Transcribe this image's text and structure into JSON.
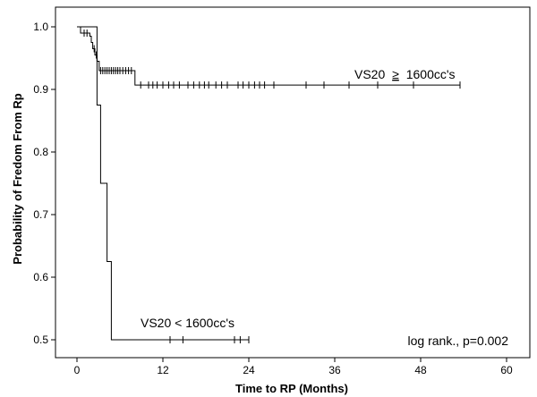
{
  "chart_data": {
    "type": "line",
    "subtype": "kaplan-meier",
    "title": "",
    "xlabel": "Time to RP (Months)",
    "ylabel": "Probability of Fredom From Rp",
    "xlim": [
      0,
      60
    ],
    "ylim": [
      0.5,
      1.0
    ],
    "xticks": [
      0,
      12,
      24,
      36,
      48,
      60
    ],
    "yticks": [
      0.5,
      0.6,
      0.7,
      0.8,
      0.9,
      1.0
    ],
    "ytick_labels": [
      "0.5",
      "0.6",
      "0.7",
      "0.8",
      "0.9",
      "1.0"
    ],
    "grid": false,
    "legend": "none",
    "series": [
      {
        "name": "VS20 ≥ 1600cc's",
        "label_prefix": "VS20",
        "label_symbol": "≥",
        "label_suffix": "1600cc's",
        "step_points": [
          [
            0,
            1.0
          ],
          [
            0.5,
            0.99
          ],
          [
            1.8,
            0.985
          ],
          [
            2.0,
            0.975
          ],
          [
            2.2,
            0.965
          ],
          [
            2.5,
            0.955
          ],
          [
            2.8,
            0.945
          ],
          [
            3.1,
            0.93
          ],
          [
            8.1,
            0.907
          ],
          [
            53.5,
            0.907
          ]
        ],
        "censored_x": [
          1.0,
          1.4,
          2.4,
          2.7,
          3.3,
          3.6,
          3.9,
          4.2,
          4.5,
          4.8,
          5.1,
          5.4,
          5.7,
          6.0,
          6.4,
          6.8,
          7.2,
          7.6,
          8.9,
          10.0,
          10.6,
          11.2,
          12.0,
          12.8,
          13.5,
          14.3,
          15.5,
          16.3,
          17.1,
          17.8,
          18.4,
          19.4,
          20.2,
          21.0,
          22.5,
          23.2,
          24.0,
          24.8,
          25.5,
          26.2,
          27.5,
          32.0,
          34.5,
          38.0,
          42.0,
          47.0,
          53.5
        ]
      },
      {
        "name": "VS20 < 1600cc's",
        "step_points": [
          [
            0,
            1.0
          ],
          [
            2.8,
            1.0
          ],
          [
            2.8,
            0.875
          ],
          [
            3.3,
            0.875
          ],
          [
            3.3,
            0.75
          ],
          [
            4.2,
            0.75
          ],
          [
            4.2,
            0.625
          ],
          [
            4.8,
            0.625
          ],
          [
            4.8,
            0.5
          ],
          [
            24.0,
            0.5
          ]
        ],
        "censored_x": [
          13.0,
          14.8,
          22.0,
          22.8,
          24.0
        ]
      }
    ],
    "annotations": {
      "test_result": "log rank., p=0.002"
    }
  }
}
